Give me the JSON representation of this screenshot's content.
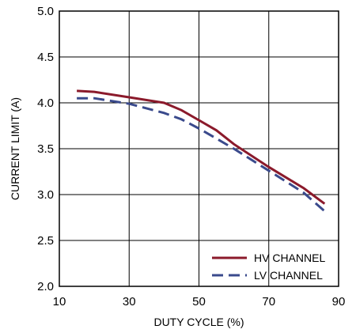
{
  "chart_data": {
    "type": "line",
    "xlabel": "DUTY CYCLE (%)",
    "ylabel": "CURRENT LIMIT (A)",
    "xlim": [
      10,
      90
    ],
    "ylim": [
      2.0,
      5.0
    ],
    "x_ticks": [
      10,
      30,
      50,
      70,
      90
    ],
    "x_tick_labels": [
      "10",
      "30",
      "50",
      "70",
      "90"
    ],
    "y_ticks": [
      2.0,
      2.5,
      3.0,
      3.5,
      4.0,
      4.5,
      5.0
    ],
    "y_tick_labels": [
      "2.0",
      "2.5",
      "3.0",
      "3.5",
      "4.0",
      "4.5",
      "5.0"
    ],
    "grid": true,
    "legend_position": "bottom-right",
    "series": [
      {
        "name": "HV CHANNEL",
        "color": "#8b1a2b",
        "dash": "solid",
        "points": [
          [
            15,
            4.13
          ],
          [
            20,
            4.12
          ],
          [
            30,
            4.06
          ],
          [
            40,
            4.0
          ],
          [
            45,
            3.92
          ],
          [
            50,
            3.81
          ],
          [
            55,
            3.7
          ],
          [
            60,
            3.55
          ],
          [
            70,
            3.3
          ],
          [
            80,
            3.07
          ],
          [
            86,
            2.9
          ]
        ]
      },
      {
        "name": "LV CHANNEL",
        "color": "#3a4a8c",
        "dash": "dashed",
        "points": [
          [
            15,
            4.05
          ],
          [
            20,
            4.05
          ],
          [
            30,
            3.99
          ],
          [
            40,
            3.89
          ],
          [
            45,
            3.82
          ],
          [
            50,
            3.72
          ],
          [
            55,
            3.61
          ],
          [
            60,
            3.5
          ],
          [
            70,
            3.26
          ],
          [
            80,
            3.02
          ],
          [
            86,
            2.82
          ]
        ]
      }
    ]
  }
}
